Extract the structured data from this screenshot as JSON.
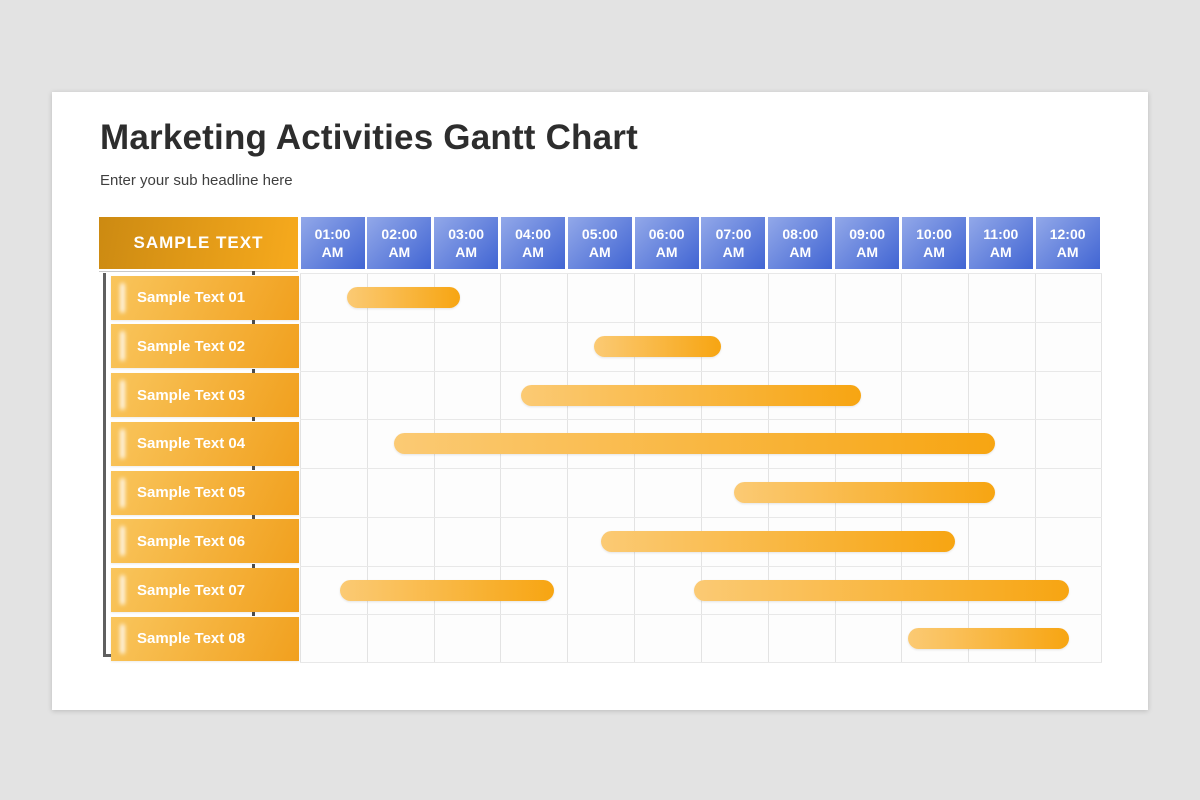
{
  "slide": {
    "title": "Marketing Activities Gantt Chart",
    "subtitle": "Enter your sub headline here"
  },
  "gantt": {
    "corner_label": "SAMPLE TEXT",
    "time_columns": [
      "01:00 AM",
      "02:00 AM",
      "03:00 AM",
      "04:00 AM",
      "05:00 AM",
      "06:00 AM",
      "07:00 AM",
      "08:00 AM",
      "09:00 AM",
      "10:00 AM",
      "11:00 AM",
      "12:00 AM"
    ]
  },
  "colors": {
    "page_bg": "#e3e3e3",
    "card_bg": "#ffffff",
    "title_text": "#2d2d2d",
    "subtitle_text": "#3f3f3f",
    "orange_header_from": "#cc8a12",
    "orange_header_to": "#f7aa1d",
    "blue_cell_from": "#92a8e9",
    "blue_cell_to": "#4165d3",
    "label_from": "#f9c55c",
    "label_to": "#f1a01e",
    "bar_from": "#fbca74",
    "bar_to": "#f7a512",
    "grid_line": "#e3e3e3",
    "bracket": "#5f5f5f"
  },
  "chart_data": {
    "type": "bar",
    "variant": "gantt",
    "title": "Marketing Activities Gantt Chart",
    "x_tick_labels": [
      "01:00 AM",
      "02:00 AM",
      "03:00 AM",
      "04:00 AM",
      "05:00 AM",
      "06:00 AM",
      "07:00 AM",
      "08:00 AM",
      "09:00 AM",
      "10:00 AM",
      "11:00 AM",
      "12:00 AM"
    ],
    "x_axis_unit": "hours (0 = left edge of 01:00 AM column, 1 column = 1 hour)",
    "x_range_columns": [
      0,
      12
    ],
    "legend": "none",
    "grid": true,
    "tasks": [
      {
        "name": "Sample Text 01",
        "segments": [
          [
            0.7,
            2.4
          ]
        ]
      },
      {
        "name": "Sample Text 02",
        "segments": [
          [
            4.4,
            6.3
          ]
        ]
      },
      {
        "name": "Sample Text 03",
        "segments": [
          [
            3.3,
            8.4
          ]
        ]
      },
      {
        "name": "Sample Text 04",
        "segments": [
          [
            1.4,
            10.4
          ]
        ]
      },
      {
        "name": "Sample Text 05",
        "segments": [
          [
            6.5,
            10.4
          ]
        ]
      },
      {
        "name": "Sample Text 06",
        "segments": [
          [
            4.5,
            9.8
          ]
        ]
      },
      {
        "name": "Sample Text 07",
        "segments": [
          [
            0.6,
            3.8
          ],
          [
            5.9,
            11.5
          ]
        ]
      },
      {
        "name": "Sample Text 08",
        "segments": [
          [
            9.1,
            11.5
          ]
        ]
      }
    ]
  }
}
